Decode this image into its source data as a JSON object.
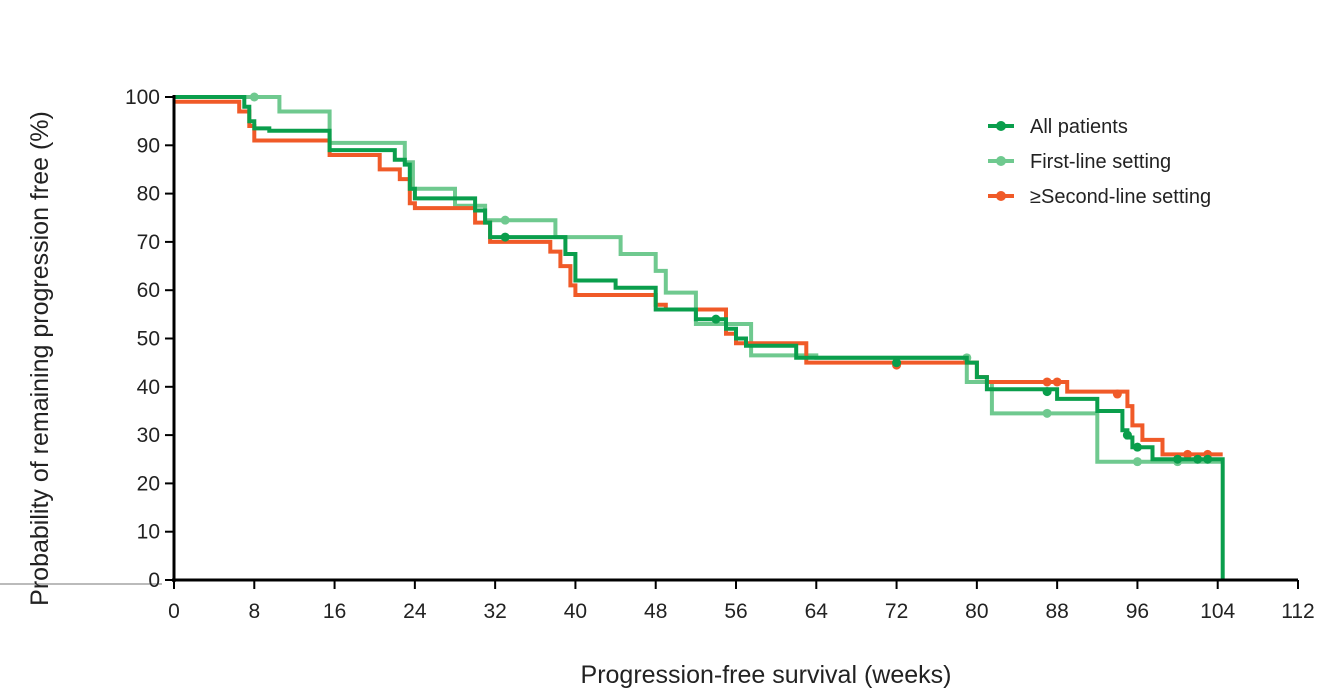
{
  "chart_data": {
    "type": "line",
    "subtype": "kaplan-meier step",
    "title": "",
    "xlabel": "Progression-free survival (weeks)",
    "ylabel": "Probability of remaining progression free (%)",
    "xlim": [
      0,
      112
    ],
    "ylim": [
      0,
      100
    ],
    "x_ticks": [
      0,
      8,
      16,
      24,
      32,
      40,
      48,
      56,
      64,
      72,
      80,
      88,
      96,
      104,
      112
    ],
    "y_ticks": [
      0,
      10,
      20,
      30,
      40,
      50,
      60,
      70,
      80,
      90,
      100
    ],
    "grid": false,
    "legend_position": "top-right",
    "series": [
      {
        "name": "First-line setting",
        "color": "#6fc98f",
        "points": [
          [
            0,
            100
          ],
          [
            10.5,
            100
          ],
          [
            10.5,
            97
          ],
          [
            15.5,
            97
          ],
          [
            15.5,
            90.5
          ],
          [
            23,
            90.5
          ],
          [
            23,
            86.5
          ],
          [
            23.8,
            86.5
          ],
          [
            23.8,
            81
          ],
          [
            28,
            81
          ],
          [
            28,
            77.5
          ],
          [
            31,
            77.5
          ],
          [
            31,
            74.5
          ],
          [
            38,
            74.5
          ],
          [
            38,
            71
          ],
          [
            44.5,
            71
          ],
          [
            44.5,
            67.5
          ],
          [
            48,
            67.5
          ],
          [
            48,
            64
          ],
          [
            49,
            64
          ],
          [
            49,
            59.5
          ],
          [
            52,
            59.5
          ],
          [
            52,
            53
          ],
          [
            57.5,
            53
          ],
          [
            57.5,
            46.5
          ],
          [
            64,
            46.5
          ],
          [
            64,
            46
          ],
          [
            79,
            46
          ],
          [
            79,
            41
          ],
          [
            81.5,
            41
          ],
          [
            81.5,
            34.5
          ],
          [
            92,
            34.5
          ],
          [
            92,
            24.5
          ],
          [
            104.5,
            24.5
          ]
        ],
        "censored": [
          [
            8,
            100
          ],
          [
            33,
            74.5
          ],
          [
            79,
            46
          ],
          [
            87,
            34.5
          ],
          [
            96,
            24.5
          ],
          [
            100,
            24.5
          ]
        ]
      },
      {
        "name": "≥Second-line setting",
        "color": "#f05a28",
        "points": [
          [
            0,
            99
          ],
          [
            6.5,
            99
          ],
          [
            6.5,
            97
          ],
          [
            7.5,
            97
          ],
          [
            7.5,
            94
          ],
          [
            8,
            94
          ],
          [
            8,
            91
          ],
          [
            15.5,
            91
          ],
          [
            15.5,
            88
          ],
          [
            20.5,
            88
          ],
          [
            20.5,
            85
          ],
          [
            22.5,
            85
          ],
          [
            22.5,
            83
          ],
          [
            23.5,
            83
          ],
          [
            23.5,
            78
          ],
          [
            24,
            78
          ],
          [
            24,
            77
          ],
          [
            30,
            77
          ],
          [
            30,
            74
          ],
          [
            31.5,
            74
          ],
          [
            31.5,
            70
          ],
          [
            37.5,
            70
          ],
          [
            37.5,
            68
          ],
          [
            38.5,
            68
          ],
          [
            38.5,
            65
          ],
          [
            39.5,
            65
          ],
          [
            39.5,
            61
          ],
          [
            40,
            61
          ],
          [
            40,
            59
          ],
          [
            48,
            59
          ],
          [
            48,
            57
          ],
          [
            49,
            57
          ],
          [
            49,
            56
          ],
          [
            55,
            56
          ],
          [
            55,
            51
          ],
          [
            56,
            51
          ],
          [
            56,
            49
          ],
          [
            58,
            49
          ],
          [
            58,
            49
          ],
          [
            63,
            49
          ],
          [
            63,
            45
          ],
          [
            80,
            45
          ],
          [
            80,
            42
          ],
          [
            81,
            42
          ],
          [
            81,
            41
          ],
          [
            89,
            41
          ],
          [
            89,
            39
          ],
          [
            95,
            39
          ],
          [
            95,
            36
          ],
          [
            95.5,
            36
          ],
          [
            95.5,
            32
          ],
          [
            96.5,
            32
          ],
          [
            96.5,
            29
          ],
          [
            98.5,
            29
          ],
          [
            98.5,
            26
          ],
          [
            104.5,
            26
          ]
        ],
        "censored": [
          [
            72,
            44.5
          ],
          [
            87,
            41
          ],
          [
            88,
            41
          ],
          [
            94,
            38.5
          ],
          [
            101,
            26
          ],
          [
            103,
            26
          ]
        ]
      },
      {
        "name": "All patients",
        "color": "#0a9e4c",
        "points": [
          [
            0,
            100
          ],
          [
            7,
            100
          ],
          [
            7,
            98
          ],
          [
            7.5,
            98
          ],
          [
            7.5,
            95
          ],
          [
            8,
            95
          ],
          [
            8,
            93.5
          ],
          [
            9.5,
            93.5
          ],
          [
            9.5,
            93
          ],
          [
            15.5,
            93
          ],
          [
            15.5,
            89
          ],
          [
            22,
            89
          ],
          [
            22,
            87
          ],
          [
            23,
            87
          ],
          [
            23,
            86
          ],
          [
            23.5,
            86
          ],
          [
            23.5,
            81
          ],
          [
            24,
            81
          ],
          [
            24,
            79
          ],
          [
            30,
            79
          ],
          [
            30,
            76.5
          ],
          [
            31,
            76.5
          ],
          [
            31,
            74
          ],
          [
            31.5,
            74
          ],
          [
            31.5,
            71
          ],
          [
            39,
            71
          ],
          [
            39,
            67.5
          ],
          [
            40,
            67.5
          ],
          [
            40,
            62
          ],
          [
            44,
            62
          ],
          [
            44,
            60.5
          ],
          [
            48,
            60.5
          ],
          [
            48,
            56
          ],
          [
            52,
            56
          ],
          [
            52,
            54
          ],
          [
            55,
            54
          ],
          [
            55,
            52
          ],
          [
            56,
            52
          ],
          [
            56,
            50
          ],
          [
            57,
            50
          ],
          [
            57,
            48.5
          ],
          [
            62,
            48.5
          ],
          [
            62,
            46
          ],
          [
            79,
            46
          ],
          [
            79,
            45
          ],
          [
            80,
            45
          ],
          [
            80,
            42
          ],
          [
            81,
            42
          ],
          [
            81,
            39.5
          ],
          [
            88,
            39.5
          ],
          [
            88,
            37.5
          ],
          [
            92,
            37.5
          ],
          [
            92,
            35
          ],
          [
            94.5,
            35
          ],
          [
            94.5,
            31
          ],
          [
            95,
            31
          ],
          [
            95,
            29.5
          ],
          [
            95.5,
            29.5
          ],
          [
            95.5,
            27.5
          ],
          [
            97.5,
            27.5
          ],
          [
            97.5,
            25
          ],
          [
            104.5,
            25
          ],
          [
            104.5,
            0
          ]
        ],
        "censored": [
          [
            33,
            71
          ],
          [
            54,
            54
          ],
          [
            72,
            45
          ],
          [
            87,
            39
          ],
          [
            95,
            30
          ],
          [
            96,
            27.5
          ],
          [
            100,
            25
          ],
          [
            102,
            25
          ],
          [
            103,
            25
          ]
        ]
      }
    ],
    "legend": [
      {
        "label": "All patients",
        "color": "#0a9e4c"
      },
      {
        "label": "First-line setting",
        "color": "#6fc98f"
      },
      {
        "label": "≥Second-line setting",
        "color": "#f05a28"
      }
    ]
  }
}
